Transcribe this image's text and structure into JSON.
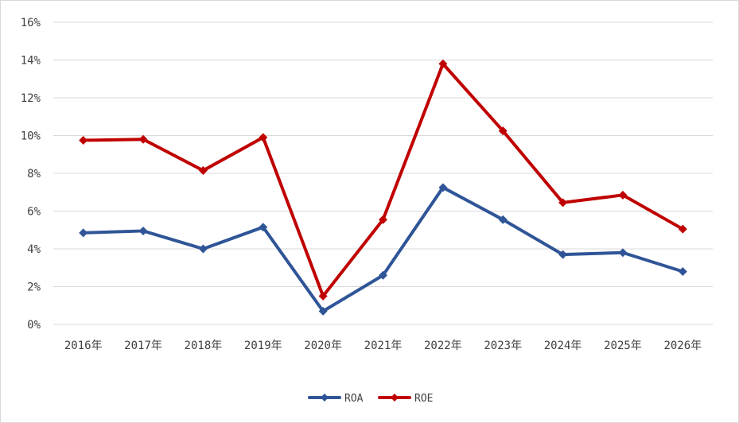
{
  "chart_data": {
    "type": "line",
    "categories": [
      "2016年",
      "2017年",
      "2018年",
      "2019年",
      "2020年",
      "2021年",
      "2022年",
      "2023年",
      "2024年",
      "2025年",
      "2026年"
    ],
    "series": [
      {
        "name": "ROA",
        "color": "#2f5597",
        "values": [
          4.85,
          4.95,
          4.0,
          5.15,
          0.7,
          2.6,
          7.25,
          5.55,
          3.7,
          3.8,
          2.8
        ]
      },
      {
        "name": "ROE",
        "color": "#c00000",
        "values": [
          9.75,
          9.8,
          8.15,
          9.9,
          1.5,
          5.55,
          13.8,
          10.25,
          6.45,
          6.85,
          5.05
        ]
      }
    ],
    "ylim": [
      0,
      16
    ],
    "yticks": [
      0,
      2,
      4,
      6,
      8,
      10,
      12,
      14,
      16
    ],
    "ytick_labels": [
      "0%",
      "2%",
      "4%",
      "6%",
      "8%",
      "10%",
      "12%",
      "14%",
      "16%"
    ],
    "grid": true,
    "legend_position": "bottom",
    "title": "",
    "xlabel": "",
    "ylabel": ""
  }
}
